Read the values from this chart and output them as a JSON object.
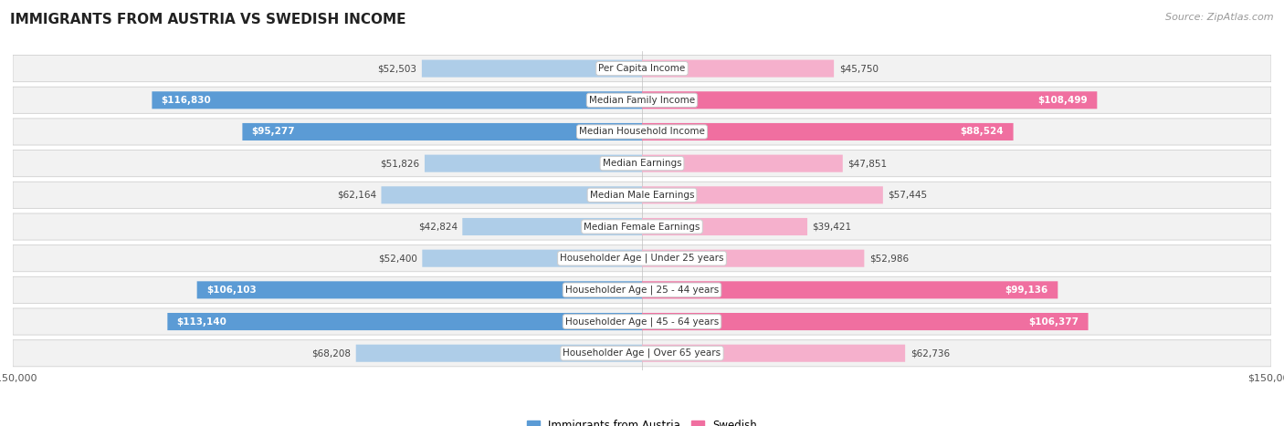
{
  "title": "IMMIGRANTS FROM AUSTRIA VS SWEDISH INCOME",
  "source": "Source: ZipAtlas.com",
  "categories": [
    "Per Capita Income",
    "Median Family Income",
    "Median Household Income",
    "Median Earnings",
    "Median Male Earnings",
    "Median Female Earnings",
    "Householder Age | Under 25 years",
    "Householder Age | 25 - 44 years",
    "Householder Age | 45 - 64 years",
    "Householder Age | Over 65 years"
  ],
  "austria_values": [
    52503,
    116830,
    95277,
    51826,
    62164,
    42824,
    52400,
    106103,
    113140,
    68208
  ],
  "swedish_values": [
    45750,
    108499,
    88524,
    47851,
    57445,
    39421,
    52986,
    99136,
    106377,
    62736
  ],
  "max_val": 150000,
  "austria_color_strong": "#5b9bd5",
  "austria_color_light": "#aecde8",
  "swedish_color_strong": "#f06fa0",
  "swedish_color_light": "#f5b0cc",
  "threshold": 80000,
  "title_fontsize": 11,
  "label_fontsize": 7.5,
  "category_fontsize": 7.5,
  "legend_fontsize": 8.5,
  "source_fontsize": 8
}
